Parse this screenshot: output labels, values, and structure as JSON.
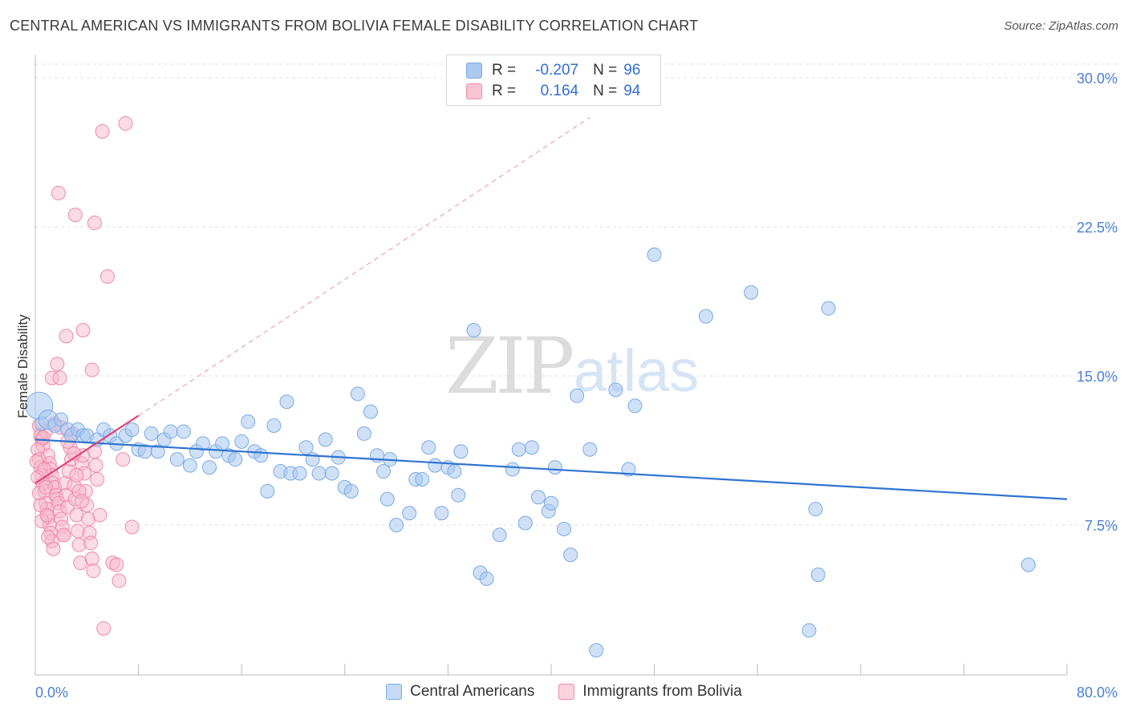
{
  "title": "CENTRAL AMERICAN VS IMMIGRANTS FROM BOLIVIA FEMALE DISABILITY CORRELATION CHART",
  "source": "Source: ZipAtlas.com",
  "watermark": {
    "zip": "ZIP",
    "atlas": "atlas"
  },
  "legend": {
    "rows": [
      {
        "r_label": "R =",
        "r_value": "-0.207",
        "n_label": "N =",
        "n_value": "96"
      },
      {
        "r_label": "R =",
        "r_value": "0.164",
        "n_label": "N =",
        "n_value": "94"
      }
    ]
  },
  "colors": {
    "blue_fill": "#aac8f0",
    "blue_stroke": "#7aaae6",
    "blue_line": "#2f74d0",
    "pink_fill": "#f8b8cc",
    "pink_stroke": "#f08aa8",
    "pink_line": "#e0457a",
    "grid": "#e3e3e3",
    "axis_text": "#4a7fd4"
  },
  "chart_data": {
    "type": "scatter",
    "title": "CENTRAL AMERICAN VS IMMIGRANTS FROM BOLIVIA FEMALE DISABILITY CORRELATION CHART",
    "xlabel": "",
    "ylabel": "Female Disability",
    "xlim": [
      0,
      80
    ],
    "ylim": [
      0,
      31
    ],
    "x_tick_labels": [
      "0.0%",
      "80.0%"
    ],
    "y_ticks": [
      7.5,
      15.0,
      22.5,
      30.0
    ],
    "y_tick_labels": [
      "7.5%",
      "15.0%",
      "22.5%",
      "30.0%"
    ],
    "grid": true,
    "legend_position": "top-center",
    "series": [
      {
        "name": "Central Americans",
        "r": -0.207,
        "n": 96,
        "trend": {
          "x": [
            0,
            80
          ],
          "y": [
            11.8,
            8.8
          ]
        },
        "points": [
          [
            0.3,
            13.5
          ],
          [
            0.5,
            12.6
          ],
          [
            1.0,
            12.8
          ],
          [
            1.5,
            12.5
          ],
          [
            2.0,
            12.8
          ],
          [
            2.5,
            12.3
          ],
          [
            2.8,
            12.0
          ],
          [
            3.3,
            12.3
          ],
          [
            3.7,
            12.0
          ],
          [
            4.0,
            12.0
          ],
          [
            4.8,
            11.8
          ],
          [
            5.3,
            12.3
          ],
          [
            5.8,
            12.0
          ],
          [
            6.3,
            11.6
          ],
          [
            7.0,
            12.0
          ],
          [
            7.5,
            12.3
          ],
          [
            8.0,
            11.3
          ],
          [
            8.5,
            11.2
          ],
          [
            9.0,
            12.1
          ],
          [
            9.5,
            11.2
          ],
          [
            10.0,
            11.8
          ],
          [
            10.5,
            12.2
          ],
          [
            11.0,
            10.8
          ],
          [
            11.5,
            12.2
          ],
          [
            12.0,
            10.5
          ],
          [
            12.5,
            11.2
          ],
          [
            13.0,
            11.6
          ],
          [
            13.5,
            10.4
          ],
          [
            14.0,
            11.2
          ],
          [
            14.5,
            11.6
          ],
          [
            15.0,
            11.0
          ],
          [
            15.5,
            10.8
          ],
          [
            16.0,
            11.7
          ],
          [
            16.5,
            12.7
          ],
          [
            17.0,
            11.2
          ],
          [
            17.5,
            11.0
          ],
          [
            18.0,
            9.2
          ],
          [
            18.5,
            12.5
          ],
          [
            19.0,
            10.2
          ],
          [
            19.5,
            13.7
          ],
          [
            19.8,
            10.1
          ],
          [
            20.5,
            10.1
          ],
          [
            21.0,
            11.4
          ],
          [
            21.5,
            10.8
          ],
          [
            22.0,
            10.1
          ],
          [
            22.5,
            11.8
          ],
          [
            23.0,
            10.1
          ],
          [
            23.5,
            10.9
          ],
          [
            24.0,
            9.4
          ],
          [
            24.5,
            9.2
          ],
          [
            25.0,
            14.1
          ],
          [
            25.5,
            12.1
          ],
          [
            26.0,
            13.2
          ],
          [
            26.5,
            11.0
          ],
          [
            27.0,
            10.2
          ],
          [
            27.3,
            8.8
          ],
          [
            27.5,
            10.8
          ],
          [
            28.0,
            7.5
          ],
          [
            29.0,
            8.1
          ],
          [
            29.5,
            9.8
          ],
          [
            30.0,
            9.8
          ],
          [
            30.5,
            11.4
          ],
          [
            31.0,
            10.5
          ],
          [
            31.5,
            8.1
          ],
          [
            32.0,
            10.4
          ],
          [
            32.5,
            10.2
          ],
          [
            32.8,
            9.0
          ],
          [
            33.0,
            11.2
          ],
          [
            34.0,
            17.3
          ],
          [
            34.5,
            5.1
          ],
          [
            35.0,
            4.8
          ],
          [
            36.0,
            7.0
          ],
          [
            37.0,
            10.3
          ],
          [
            37.5,
            11.3
          ],
          [
            38.0,
            7.6
          ],
          [
            38.5,
            11.4
          ],
          [
            39.0,
            8.9
          ],
          [
            39.8,
            8.2
          ],
          [
            40.0,
            8.6
          ],
          [
            40.3,
            10.4
          ],
          [
            41.0,
            7.3
          ],
          [
            41.5,
            6.0
          ],
          [
            42.0,
            14.0
          ],
          [
            43.0,
            11.3
          ],
          [
            43.5,
            1.2
          ],
          [
            45.0,
            14.3
          ],
          [
            46.0,
            10.3
          ],
          [
            46.5,
            13.5
          ],
          [
            48.0,
            21.1
          ],
          [
            52.0,
            18.0
          ],
          [
            55.5,
            19.2
          ],
          [
            60.0,
            2.2
          ],
          [
            60.5,
            8.3
          ],
          [
            60.7,
            5.0
          ],
          [
            61.5,
            18.4
          ],
          [
            77.0,
            5.5
          ]
        ]
      },
      {
        "name": "Immigrants from Bolivia",
        "r": 0.164,
        "n": 94,
        "trend": {
          "x": [
            0,
            8
          ],
          "y": [
            9.6,
            13.0
          ]
        },
        "trend_extended": {
          "x": [
            8,
            43
          ],
          "y": [
            13.0,
            28.0
          ]
        },
        "points": [
          [
            7.0,
            27.7
          ],
          [
            5.2,
            27.3
          ],
          [
            1.8,
            24.2
          ],
          [
            3.1,
            23.1
          ],
          [
            4.6,
            22.7
          ],
          [
            5.6,
            20.0
          ],
          [
            3.7,
            17.3
          ],
          [
            2.4,
            17.0
          ],
          [
            1.7,
            15.6
          ],
          [
            4.4,
            15.3
          ],
          [
            1.3,
            14.9
          ],
          [
            1.9,
            14.9
          ],
          [
            0.3,
            12.5
          ],
          [
            0.4,
            12.0
          ],
          [
            0.5,
            11.8
          ],
          [
            0.6,
            11.5
          ],
          [
            0.8,
            12.2
          ],
          [
            1.0,
            11.0
          ],
          [
            1.1,
            10.6
          ],
          [
            1.2,
            10.3
          ],
          [
            1.3,
            10.0
          ],
          [
            1.4,
            9.6
          ],
          [
            1.5,
            9.4
          ],
          [
            1.6,
            9.0
          ],
          [
            1.7,
            8.8
          ],
          [
            1.8,
            8.6
          ],
          [
            1.9,
            8.2
          ],
          [
            2.0,
            7.8
          ],
          [
            2.1,
            7.4
          ],
          [
            2.2,
            7.0
          ],
          [
            0.2,
            11.3
          ],
          [
            0.3,
            10.8
          ],
          [
            0.4,
            10.4
          ],
          [
            0.5,
            10.0
          ],
          [
            0.6,
            9.6
          ],
          [
            0.7,
            9.2
          ],
          [
            0.8,
            8.6
          ],
          [
            0.9,
            8.3
          ],
          [
            1.0,
            7.9
          ],
          [
            1.1,
            7.5
          ],
          [
            1.2,
            7.1
          ],
          [
            1.3,
            6.7
          ],
          [
            1.4,
            6.3
          ],
          [
            2.3,
            9.6
          ],
          [
            2.4,
            9.0
          ],
          [
            2.5,
            8.4
          ],
          [
            2.6,
            10.2
          ],
          [
            2.7,
            11.4
          ],
          [
            2.8,
            10.8
          ],
          [
            2.9,
            12.1
          ],
          [
            3.0,
            9.5
          ],
          [
            3.1,
            8.8
          ],
          [
            3.2,
            8.0
          ],
          [
            3.3,
            7.2
          ],
          [
            3.4,
            6.5
          ],
          [
            3.5,
            5.6
          ],
          [
            3.6,
            10.6
          ],
          [
            3.7,
            11.0
          ],
          [
            3.8,
            10.1
          ],
          [
            3.9,
            9.2
          ],
          [
            4.0,
            8.5
          ],
          [
            4.1,
            7.8
          ],
          [
            4.2,
            7.1
          ],
          [
            4.3,
            6.6
          ],
          [
            4.4,
            5.8
          ],
          [
            4.5,
            5.2
          ],
          [
            4.6,
            11.2
          ],
          [
            4.7,
            10.5
          ],
          [
            4.8,
            9.8
          ],
          [
            5.0,
            8.0
          ],
          [
            5.3,
            2.3
          ],
          [
            6.0,
            5.6
          ],
          [
            6.3,
            5.5
          ],
          [
            6.5,
            4.7
          ],
          [
            6.8,
            10.8
          ],
          [
            7.5,
            7.4
          ],
          [
            0.1,
            10.7
          ],
          [
            0.2,
            9.9
          ],
          [
            0.3,
            9.1
          ],
          [
            0.4,
            8.5
          ],
          [
            0.5,
            7.7
          ],
          [
            0.6,
            11.9
          ],
          [
            0.7,
            10.3
          ],
          [
            0.8,
            9.4
          ],
          [
            0.9,
            8.0
          ],
          [
            1.0,
            6.9
          ],
          [
            1.5,
            12.6
          ],
          [
            2.0,
            12.4
          ],
          [
            2.5,
            11.7
          ],
          [
            3.0,
            11.1
          ],
          [
            3.2,
            10.0
          ],
          [
            3.4,
            9.2
          ],
          [
            3.6,
            8.7
          ],
          [
            2.2,
            7.0
          ]
        ]
      }
    ]
  }
}
